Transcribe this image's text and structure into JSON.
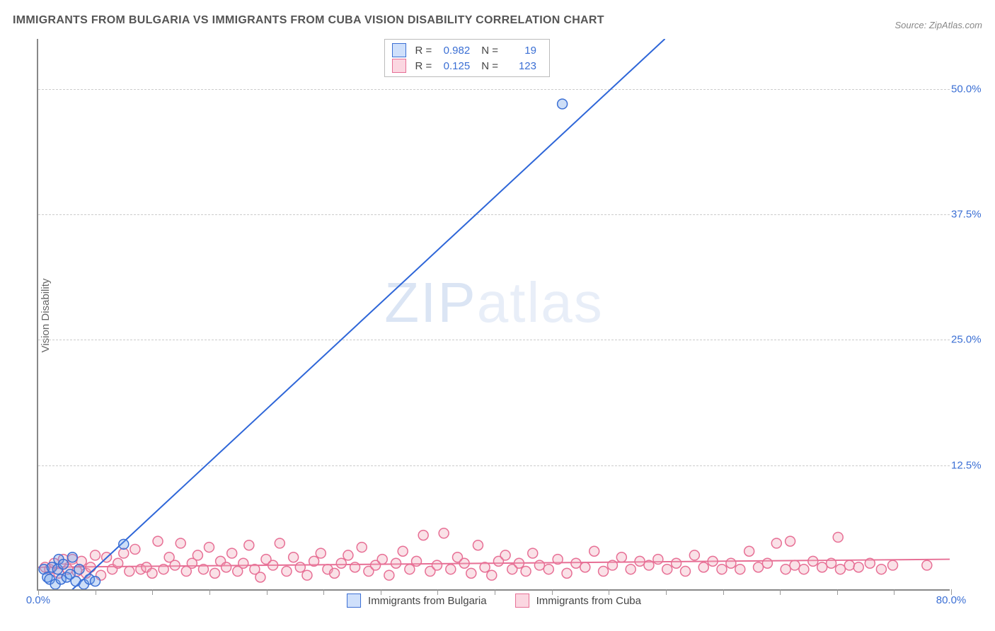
{
  "title": "IMMIGRANTS FROM BULGARIA VS IMMIGRANTS FROM CUBA VISION DISABILITY CORRELATION CHART",
  "source": "Source: ZipAtlas.com",
  "ylabel": "Vision Disability",
  "watermark": {
    "a": "ZIP",
    "b": "atlas"
  },
  "chart": {
    "type": "scatter-with-regression",
    "xlim": [
      0,
      80
    ],
    "ylim": [
      0,
      55
    ],
    "x_tick_interval": 5,
    "x_tick_labels": {
      "0": "0.0%",
      "80": "80.0%"
    },
    "y_ticks": [
      12.5,
      25.0,
      37.5,
      50.0
    ],
    "y_tick_labels": [
      "12.5%",
      "25.0%",
      "37.5%",
      "50.0%"
    ],
    "background_color": "#ffffff",
    "grid_color": "#cccccc",
    "axis_color": "#888888",
    "tick_label_color": "#3b6fd4",
    "marker_radius": 7,
    "marker_fill_opacity": 0.35,
    "line_width": 2,
    "series": [
      {
        "name": "Immigrants from Bulgaria",
        "color": "#6fa0e8",
        "stroke": "#3b6fd4",
        "line_color": "#2e66d8",
        "R": "0.982",
        "N": "19",
        "regression": {
          "x1": 0,
          "y1": -3.2,
          "x2": 55,
          "y2": 55
        },
        "points": [
          [
            0.5,
            2.0
          ],
          [
            0.8,
            1.2
          ],
          [
            1.0,
            1.0
          ],
          [
            1.2,
            2.2
          ],
          [
            1.5,
            0.5
          ],
          [
            1.7,
            2.0
          ],
          [
            1.8,
            3.0
          ],
          [
            2.0,
            1.0
          ],
          [
            2.2,
            2.5
          ],
          [
            2.5,
            1.2
          ],
          [
            2.8,
            1.5
          ],
          [
            3.0,
            3.2
          ],
          [
            3.3,
            0.8
          ],
          [
            3.6,
            2.0
          ],
          [
            4.0,
            0.5
          ],
          [
            4.5,
            1.0
          ],
          [
            5.0,
            0.8
          ],
          [
            7.5,
            4.5
          ],
          [
            46,
            48.5
          ]
        ]
      },
      {
        "name": "Immigrants from Cuba",
        "color": "#f2a8bb",
        "stroke": "#e76f95",
        "line_color": "#e76f95",
        "R": "0.125",
        "N": "123",
        "regression": {
          "x1": 0,
          "y1": 2.2,
          "x2": 80,
          "y2": 3.0
        },
        "points": [
          [
            0.6,
            2.2
          ],
          [
            1.0,
            2.0
          ],
          [
            1.4,
            2.6
          ],
          [
            1.8,
            1.6
          ],
          [
            2.2,
            3.0
          ],
          [
            2.6,
            2.0
          ],
          [
            3.0,
            3.0
          ],
          [
            3.4,
            1.8
          ],
          [
            3.8,
            2.8
          ],
          [
            4.2,
            1.6
          ],
          [
            4.6,
            2.2
          ],
          [
            5.0,
            3.4
          ],
          [
            5.5,
            1.4
          ],
          [
            6.0,
            3.2
          ],
          [
            6.5,
            2.0
          ],
          [
            7.0,
            2.6
          ],
          [
            7.5,
            3.6
          ],
          [
            8.0,
            1.8
          ],
          [
            8.5,
            4.0
          ],
          [
            9.0,
            2.0
          ],
          [
            9.5,
            2.2
          ],
          [
            10.0,
            1.6
          ],
          [
            10.5,
            4.8
          ],
          [
            11.0,
            2.0
          ],
          [
            11.5,
            3.2
          ],
          [
            12.0,
            2.4
          ],
          [
            12.5,
            4.6
          ],
          [
            13.0,
            1.8
          ],
          [
            13.5,
            2.6
          ],
          [
            14.0,
            3.4
          ],
          [
            14.5,
            2.0
          ],
          [
            15.0,
            4.2
          ],
          [
            15.5,
            1.6
          ],
          [
            16.0,
            2.8
          ],
          [
            16.5,
            2.2
          ],
          [
            17.0,
            3.6
          ],
          [
            17.5,
            1.8
          ],
          [
            18.0,
            2.6
          ],
          [
            18.5,
            4.4
          ],
          [
            19.0,
            2.0
          ],
          [
            19.5,
            1.2
          ],
          [
            20.0,
            3.0
          ],
          [
            20.6,
            2.4
          ],
          [
            21.2,
            4.6
          ],
          [
            21.8,
            1.8
          ],
          [
            22.4,
            3.2
          ],
          [
            23.0,
            2.2
          ],
          [
            23.6,
            1.4
          ],
          [
            24.2,
            2.8
          ],
          [
            24.8,
            3.6
          ],
          [
            25.4,
            2.0
          ],
          [
            26.0,
            1.6
          ],
          [
            26.6,
            2.6
          ],
          [
            27.2,
            3.4
          ],
          [
            27.8,
            2.2
          ],
          [
            28.4,
            4.2
          ],
          [
            29.0,
            1.8
          ],
          [
            29.6,
            2.4
          ],
          [
            30.2,
            3.0
          ],
          [
            30.8,
            1.4
          ],
          [
            31.4,
            2.6
          ],
          [
            32.0,
            3.8
          ],
          [
            32.6,
            2.0
          ],
          [
            33.2,
            2.8
          ],
          [
            33.8,
            5.4
          ],
          [
            34.4,
            1.8
          ],
          [
            35.0,
            2.4
          ],
          [
            35.6,
            5.6
          ],
          [
            36.2,
            2.0
          ],
          [
            36.8,
            3.2
          ],
          [
            37.4,
            2.6
          ],
          [
            38.0,
            1.6
          ],
          [
            38.6,
            4.4
          ],
          [
            39.2,
            2.2
          ],
          [
            39.8,
            1.4
          ],
          [
            40.4,
            2.8
          ],
          [
            41.0,
            3.4
          ],
          [
            41.6,
            2.0
          ],
          [
            42.2,
            2.6
          ],
          [
            42.8,
            1.8
          ],
          [
            43.4,
            3.6
          ],
          [
            44.0,
            2.4
          ],
          [
            44.8,
            2.0
          ],
          [
            45.6,
            3.0
          ],
          [
            46.4,
            1.6
          ],
          [
            47.2,
            2.6
          ],
          [
            48.0,
            2.2
          ],
          [
            48.8,
            3.8
          ],
          [
            49.6,
            1.8
          ],
          [
            50.4,
            2.4
          ],
          [
            51.2,
            3.2
          ],
          [
            52.0,
            2.0
          ],
          [
            52.8,
            2.8
          ],
          [
            53.6,
            2.4
          ],
          [
            54.4,
            3.0
          ],
          [
            55.2,
            2.0
          ],
          [
            56.0,
            2.6
          ],
          [
            56.8,
            1.8
          ],
          [
            57.6,
            3.4
          ],
          [
            58.4,
            2.2
          ],
          [
            59.2,
            2.8
          ],
          [
            60.0,
            2.0
          ],
          [
            60.8,
            2.6
          ],
          [
            61.6,
            2.0
          ],
          [
            62.4,
            3.8
          ],
          [
            63.2,
            2.2
          ],
          [
            64.0,
            2.6
          ],
          [
            64.8,
            4.6
          ],
          [
            65.6,
            2.0
          ],
          [
            66.0,
            4.8
          ],
          [
            66.4,
            2.4
          ],
          [
            67.2,
            2.0
          ],
          [
            68.0,
            2.8
          ],
          [
            68.8,
            2.2
          ],
          [
            69.6,
            2.6
          ],
          [
            70.2,
            5.2
          ],
          [
            70.4,
            2.0
          ],
          [
            71.2,
            2.4
          ],
          [
            72.0,
            2.2
          ],
          [
            73.0,
            2.6
          ],
          [
            74.0,
            2.0
          ],
          [
            75.0,
            2.4
          ],
          [
            78.0,
            2.4
          ]
        ]
      }
    ]
  },
  "legend_bottom": [
    {
      "swatch_fill": "#cfe0fb",
      "swatch_border": "#3b6fd4",
      "label": "Immigrants from Bulgaria"
    },
    {
      "swatch_fill": "#fbd7e1",
      "swatch_border": "#e76f95",
      "label": "Immigrants from Cuba"
    }
  ]
}
